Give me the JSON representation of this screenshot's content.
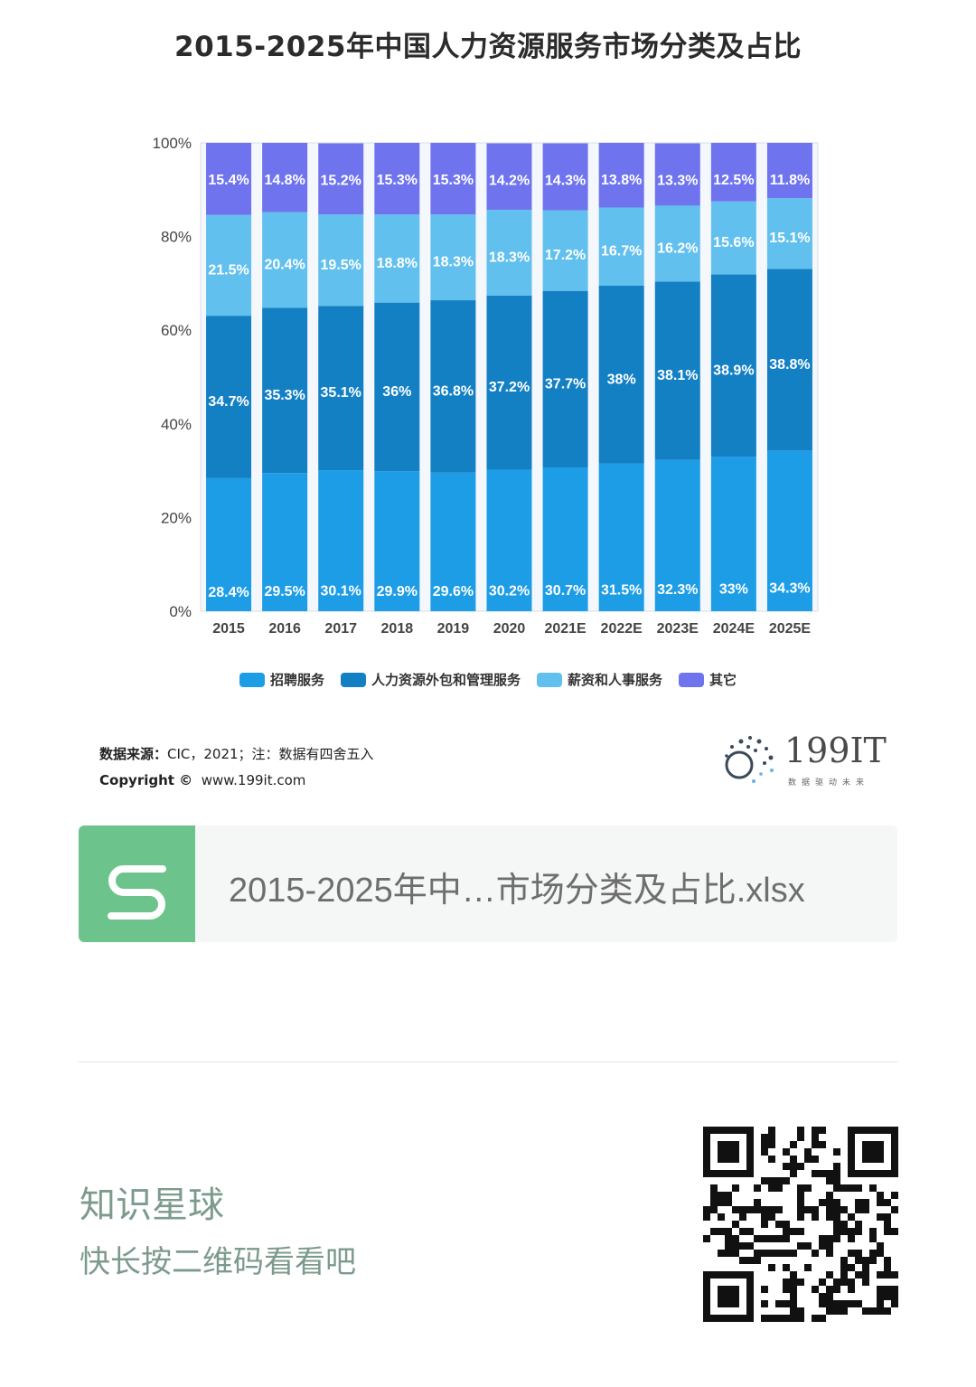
{
  "title": "2015-2025年中国人力资源服务市场分类及占比",
  "chart_data": {
    "type": "bar",
    "stacked": true,
    "categories": [
      "2015",
      "2016",
      "2017",
      "2018",
      "2019",
      "2020",
      "2021E",
      "2022E",
      "2023E",
      "2024E",
      "2025E"
    ],
    "series": [
      {
        "name": "招聘服务",
        "color": "#1d9de6",
        "values": [
          28.4,
          29.5,
          30.1,
          29.9,
          29.6,
          30.2,
          30.7,
          31.5,
          32.3,
          33,
          34.3
        ],
        "labels": [
          "28.4%",
          "29.5%",
          "30.1%",
          "29.9%",
          "29.6%",
          "30.2%",
          "30.7%",
          "31.5%",
          "32.3%",
          "33%",
          "34.3%"
        ]
      },
      {
        "name": "人力资源外包和管理服务",
        "color": "#1480c4",
        "values": [
          34.7,
          35.3,
          35.1,
          36,
          36.8,
          37.2,
          37.7,
          38,
          38.1,
          38.9,
          38.8
        ],
        "labels": [
          "34.7%",
          "35.3%",
          "35.1%",
          "36%",
          "36.8%",
          "37.2%",
          "37.7%",
          "38%",
          "38.1%",
          "38.9%",
          "38.8%"
        ]
      },
      {
        "name": "薪资和人事服务",
        "color": "#62c0ee",
        "values": [
          21.5,
          20.4,
          19.5,
          18.8,
          18.3,
          18.3,
          17.2,
          16.7,
          16.2,
          15.6,
          15.1
        ],
        "labels": [
          "21.5%",
          "20.4%",
          "19.5%",
          "18.8%",
          "18.3%",
          "18.3%",
          "17.2%",
          "16.7%",
          "16.2%",
          "15.6%",
          "15.1%"
        ]
      },
      {
        "name": "其它",
        "color": "#6f74ee",
        "values": [
          15.4,
          14.8,
          15.2,
          15.3,
          15.3,
          14.2,
          14.3,
          13.8,
          13.3,
          12.5,
          11.8
        ],
        "labels": [
          "15.4%",
          "14.8%",
          "15.2%",
          "15.3%",
          "15.3%",
          "14.2%",
          "14.3%",
          "13.8%",
          "13.3%",
          "12.5%",
          "11.8%"
        ]
      }
    ],
    "yticks": [
      "0%",
      "20%",
      "40%",
      "60%",
      "80%",
      "100%"
    ],
    "ylim": [
      0,
      100
    ],
    "legend": "bottom",
    "grid": false
  },
  "source": {
    "label": "数据来源：",
    "text": "CIC，2021；注：数据有四舍五入",
    "copyright": "Copyright ©",
    "url": "www.199it.com"
  },
  "logo": {
    "name": "199IT",
    "tagline": "数据驱动未来"
  },
  "file": {
    "name": "2015-2025年中…市场分类及占比.xlsx",
    "icon": "spreadsheet-s-icon"
  },
  "promo": {
    "title": "知识星球",
    "subtitle": "快长按二维码看看吧"
  }
}
